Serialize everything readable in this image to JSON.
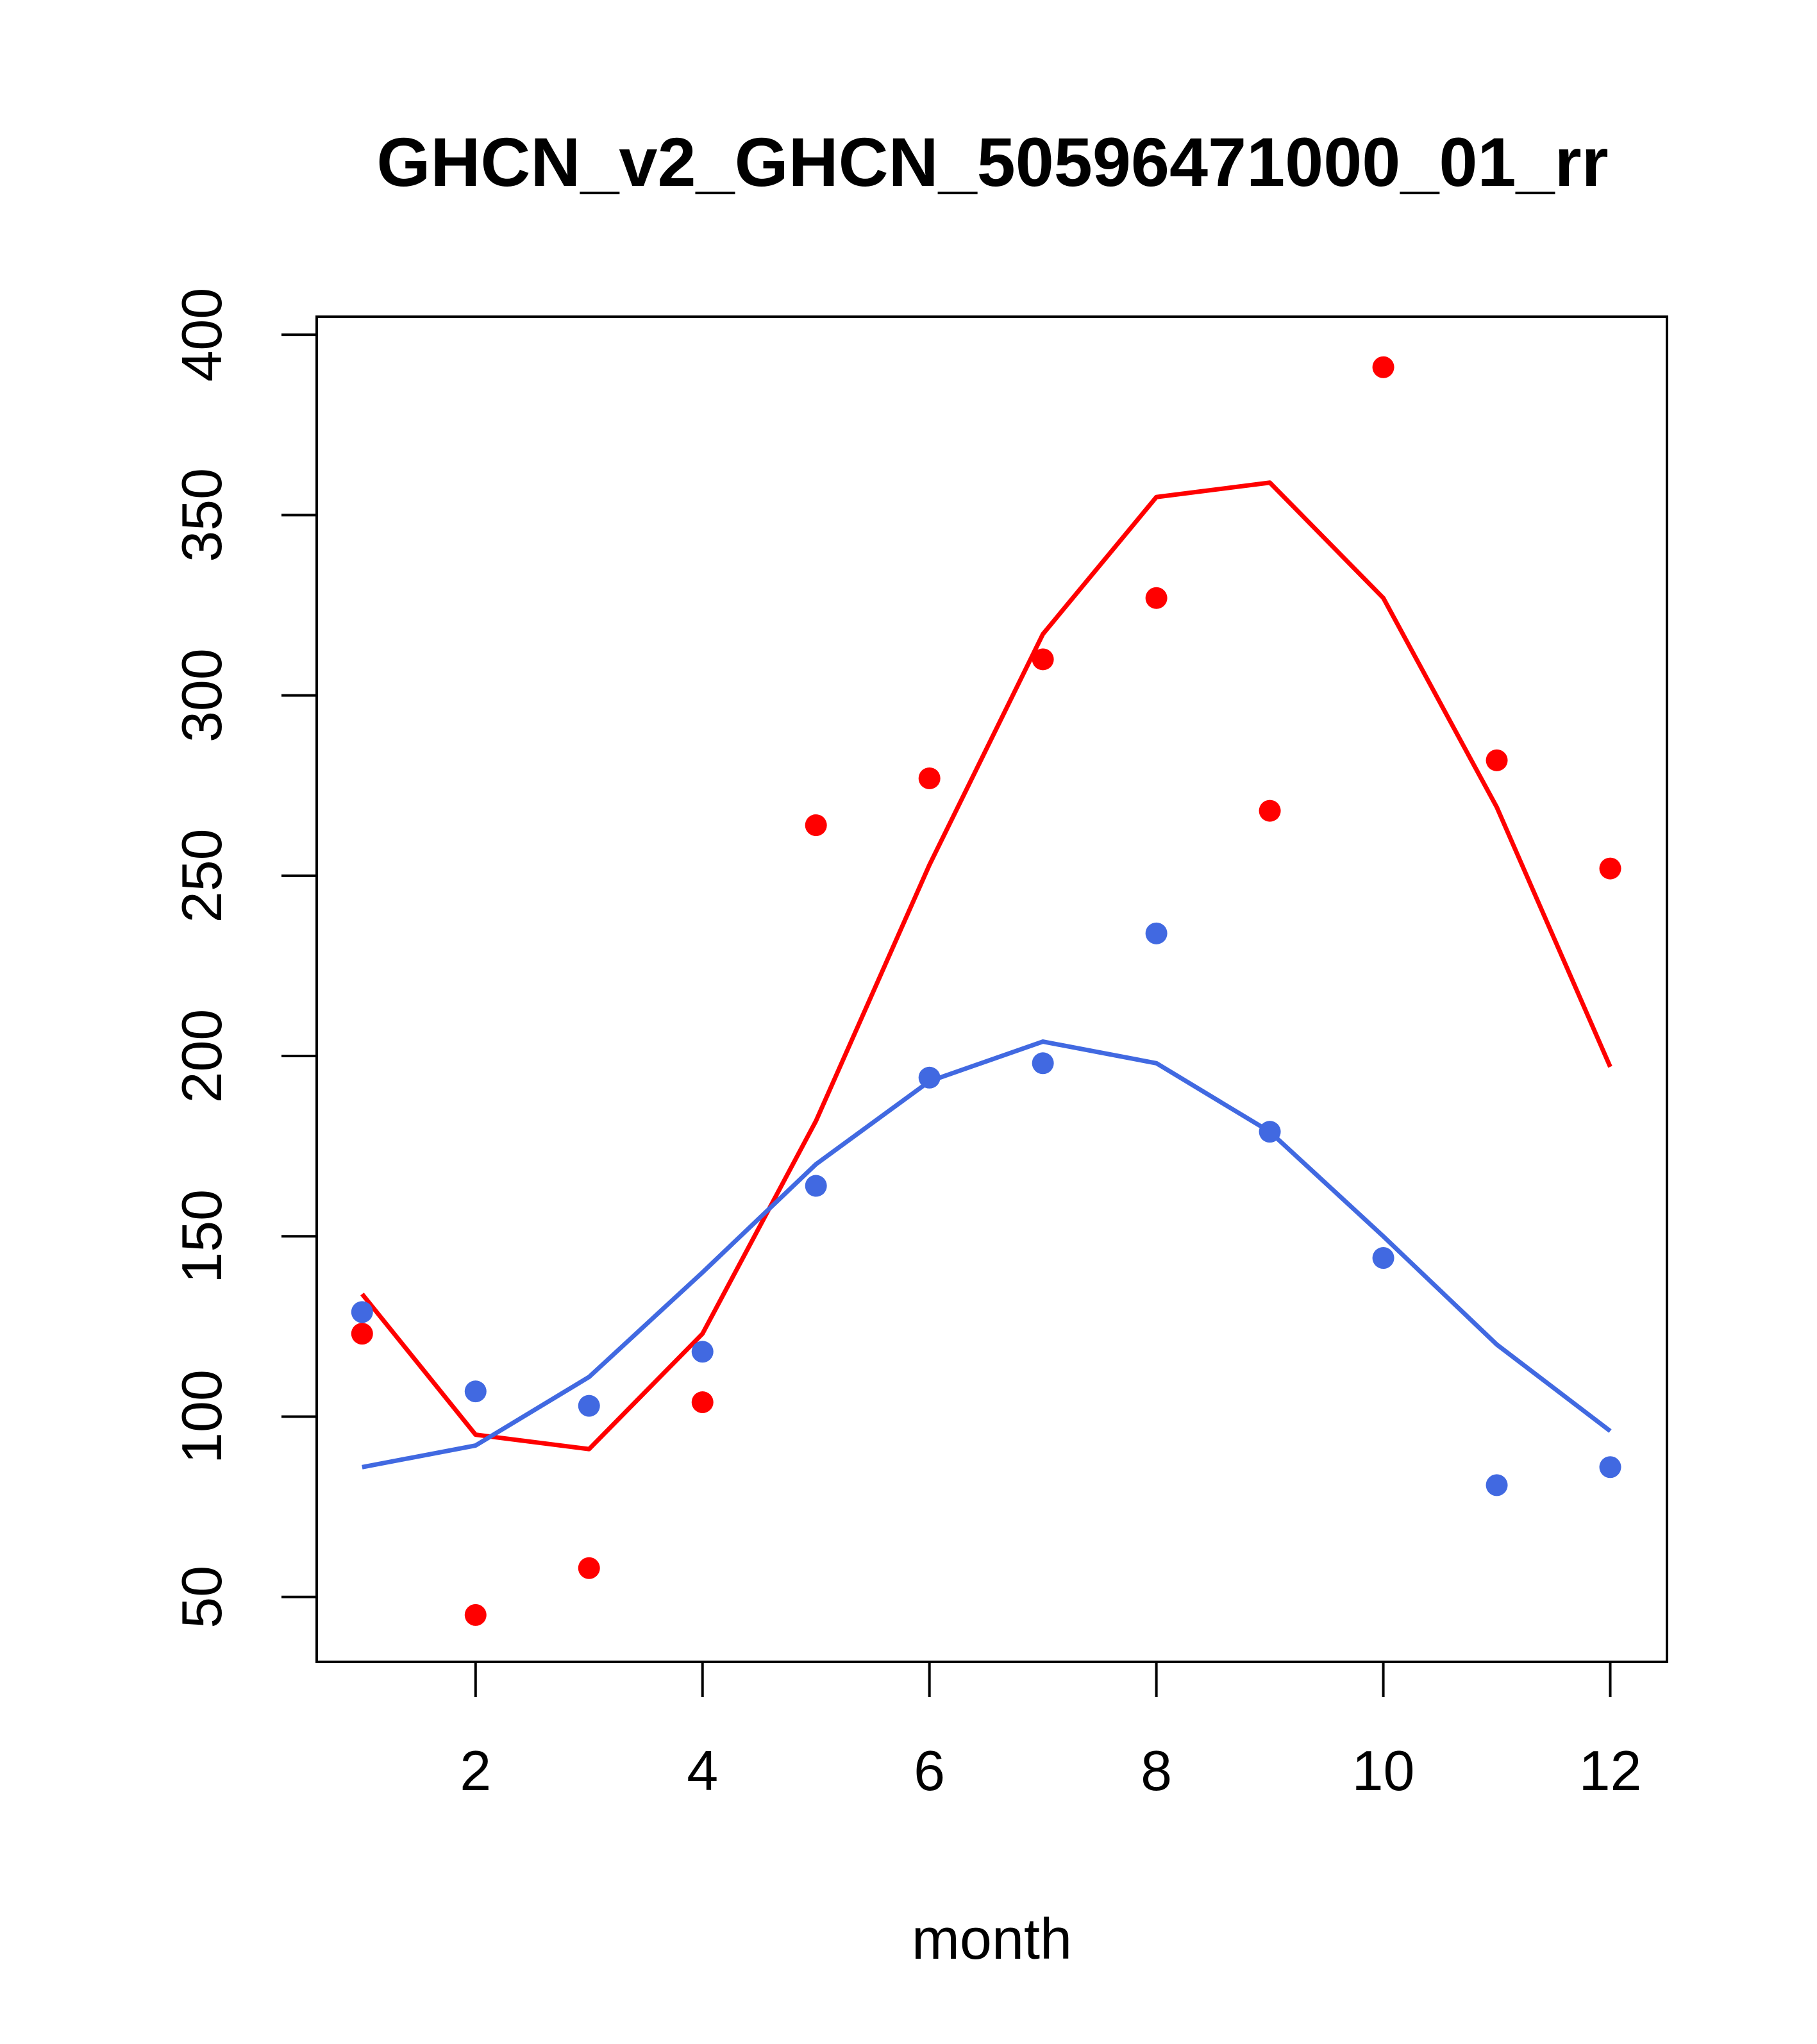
{
  "chart_data": {
    "type": "scatter",
    "title": "GHCN_v2_GHCN_50596471000_01_rr",
    "xlabel": "month",
    "ylabel": "",
    "xlim": [
      0.6,
      12.5
    ],
    "ylim": [
      32,
      405
    ],
    "x_ticks": [
      2,
      4,
      6,
      8,
      10,
      12
    ],
    "y_ticks": [
      50,
      100,
      150,
      200,
      250,
      300,
      350,
      400
    ],
    "grid": false,
    "series": [
      {
        "name": "red-points",
        "kind": "points",
        "color": "#ff0000",
        "x": [
          1,
          2,
          3,
          4,
          5,
          6,
          7,
          8,
          9,
          10,
          11,
          12
        ],
        "y": [
          123,
          45,
          58,
          104,
          264,
          277,
          310,
          327,
          268,
          391,
          282,
          252
        ]
      },
      {
        "name": "red-line",
        "kind": "line",
        "color": "#ff0000",
        "x": [
          1,
          2,
          3,
          4,
          5,
          6,
          7,
          8,
          9,
          10,
          11,
          12
        ],
        "y": [
          134,
          95,
          91,
          123,
          182,
          253,
          317,
          355,
          359,
          327,
          269,
          197
        ]
      },
      {
        "name": "blue-points",
        "kind": "points",
        "color": "#4169e1",
        "x": [
          1,
          2,
          3,
          4,
          5,
          6,
          7,
          8,
          9,
          10,
          11,
          12
        ],
        "y": [
          129,
          107,
          103,
          118,
          164,
          194,
          198,
          234,
          179,
          144,
          81,
          86
        ]
      },
      {
        "name": "blue-line",
        "kind": "line",
        "color": "#4169e1",
        "x": [
          1,
          2,
          3,
          4,
          5,
          6,
          7,
          8,
          9,
          10,
          11,
          12
        ],
        "y": [
          86,
          92,
          111,
          140,
          170,
          193,
          204,
          198,
          179,
          150,
          120,
          96
        ]
      }
    ]
  }
}
